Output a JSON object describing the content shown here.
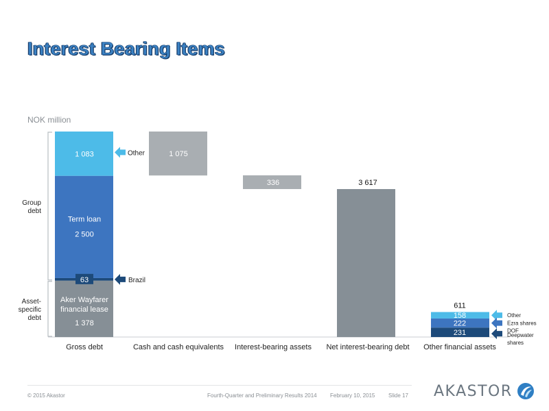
{
  "slide": {
    "title": "Interest Bearing Items",
    "unit": "NOK million"
  },
  "colors": {
    "light_blue": "#4dbbe8",
    "mid_blue": "#3d75c0",
    "dark_blue": "#1d4a7a",
    "gray": "#868f96",
    "light_gray": "#a9aeb2",
    "bracket": "#b8bdc2"
  },
  "chart_data": {
    "type": "bar",
    "subtype": "waterfall",
    "ylabel": "NOK million",
    "ylim": [
      0,
      4100
    ],
    "categories": [
      "Gross debt",
      "Cash and cash equivalents",
      "Interest-bearing assets",
      "Net interest-bearing debt",
      "Other financial assets"
    ],
    "gross_debt_segments": [
      {
        "id": "fin-lease",
        "label_lines": [
          "Aker Wayfarer",
          "financial lease"
        ],
        "value_label": "1 378",
        "value": 1378,
        "color": "gray"
      },
      {
        "id": "brazil",
        "label_lines": [],
        "value_label": "63",
        "value": 63,
        "color": "dark_blue",
        "callout": "Brazil"
      },
      {
        "id": "term-loan",
        "label_lines": [
          "Term loan"
        ],
        "value_label": "2 500",
        "value": 2500,
        "color": "mid_blue"
      },
      {
        "id": "other",
        "label_lines": [],
        "value_label": "1 083",
        "value": 1083,
        "color": "light_blue",
        "callout": "Other"
      }
    ],
    "cash": {
      "value": -1075,
      "value_label": "1 075",
      "from": 5024
    },
    "interest_assets": {
      "value": -336,
      "value_label": "336",
      "from": 3953
    },
    "net_debt": {
      "value": 3617,
      "value_label": "3 617"
    },
    "other_financial_assets": {
      "total": 611,
      "total_label": "611",
      "segments": [
        {
          "id": "deepwater",
          "value": 231,
          "value_label": "231",
          "color": "dark_blue",
          "callout": "Deepwater shares"
        },
        {
          "id": "ezra",
          "value": 222,
          "value_label": "222",
          "color": "mid_blue",
          "callout": "Ezra shares DOF"
        },
        {
          "id": "other2",
          "value": 158,
          "value_label": "158",
          "color": "light_blue",
          "callout": "Other"
        }
      ]
    },
    "brackets": [
      {
        "id": "group-debt",
        "label_lines": [
          "Group",
          "debt"
        ],
        "from": 1378,
        "to": 5024
      },
      {
        "id": "asset-specific",
        "label_lines": [
          "Asset-",
          "specific",
          "debt"
        ],
        "from": 0,
        "to": 1378
      }
    ],
    "callout_text": {
      "ezra": [
        "Ezra shares",
        "DOF"
      ],
      "deepwater": [
        "Deepwater",
        "shares"
      ]
    },
    "grid": false,
    "legend": "none"
  },
  "footer": {
    "copyright": "© 2015 Akastor",
    "event": "Fourth-Quarter and Preliminary Results 2014",
    "date": "February 10, 2015",
    "slide": "Slide 17",
    "logo_text": "AKASTOR"
  }
}
